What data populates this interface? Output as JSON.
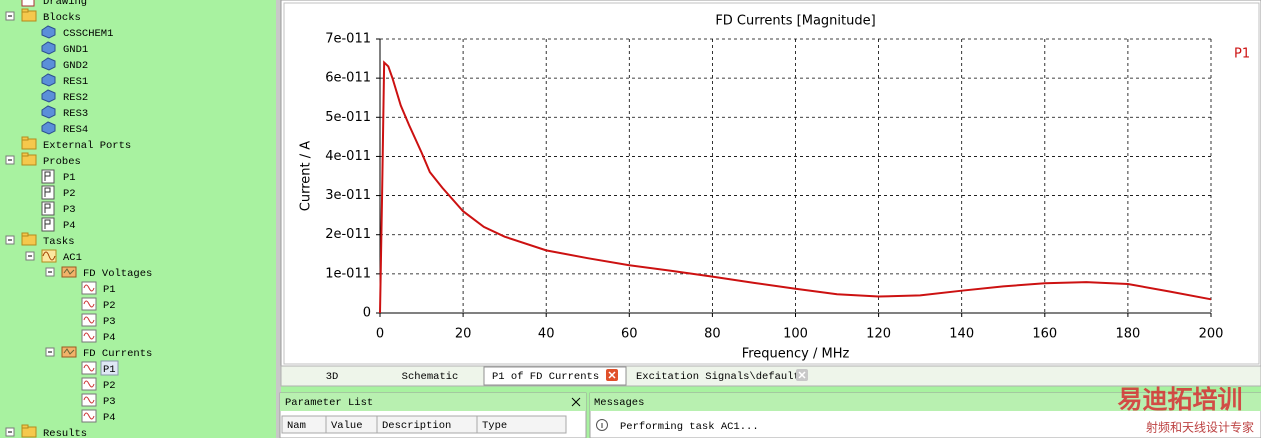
{
  "tree": {
    "items": [
      {
        "label": "Drawing",
        "level": 0,
        "icon": "drawing"
      },
      {
        "label": "Blocks",
        "level": 0,
        "icon": "folder",
        "expanded": true
      },
      {
        "label": "CSSCHEM1",
        "level": 1,
        "icon": "block"
      },
      {
        "label": "GND1",
        "level": 1,
        "icon": "block"
      },
      {
        "label": "GND2",
        "level": 1,
        "icon": "block"
      },
      {
        "label": "RES1",
        "level": 1,
        "icon": "block"
      },
      {
        "label": "RES2",
        "level": 1,
        "icon": "block"
      },
      {
        "label": "RES3",
        "level": 1,
        "icon": "block"
      },
      {
        "label": "RES4",
        "level": 1,
        "icon": "block"
      },
      {
        "label": "External Ports",
        "level": 0,
        "icon": "folder"
      },
      {
        "label": "Probes",
        "level": 0,
        "icon": "folder",
        "expanded": true
      },
      {
        "label": "P1",
        "level": 1,
        "icon": "probe"
      },
      {
        "label": "P2",
        "level": 1,
        "icon": "probe"
      },
      {
        "label": "P3",
        "level": 1,
        "icon": "probe"
      },
      {
        "label": "P4",
        "level": 1,
        "icon": "probe"
      },
      {
        "label": "Tasks",
        "level": 0,
        "icon": "folder",
        "expanded": true
      },
      {
        "label": "AC1",
        "level": 1,
        "icon": "task",
        "expanded": true
      },
      {
        "label": "FD Voltages",
        "level": 2,
        "icon": "group",
        "expanded": true
      },
      {
        "label": "P1",
        "level": 3,
        "icon": "signal"
      },
      {
        "label": "P2",
        "level": 3,
        "icon": "signal"
      },
      {
        "label": "P3",
        "level": 3,
        "icon": "signal"
      },
      {
        "label": "P4",
        "level": 3,
        "icon": "signal"
      },
      {
        "label": "FD Currents",
        "level": 2,
        "icon": "group",
        "expanded": true
      },
      {
        "label": "P1",
        "level": 3,
        "icon": "signal",
        "selected": true
      },
      {
        "label": "P2",
        "level": 3,
        "icon": "signal"
      },
      {
        "label": "P3",
        "level": 3,
        "icon": "signal"
      },
      {
        "label": "P4",
        "level": 3,
        "icon": "signal"
      },
      {
        "label": "Results",
        "level": 0,
        "icon": "folder",
        "expanded": true
      }
    ]
  },
  "chart_data": {
    "type": "line",
    "title": "FD Currents [Magnitude]",
    "x_label": "Frequency / MHz",
    "y_label": "Current / A",
    "x": [
      0,
      0.5,
      1,
      2,
      3,
      5,
      7,
      10,
      12,
      15,
      20,
      25,
      30,
      40,
      50,
      60,
      70,
      80,
      90,
      100,
      110,
      120,
      130,
      140,
      150,
      160,
      170,
      180,
      190,
      200
    ],
    "series": [
      {
        "name": "P1",
        "color": "#cc1111",
        "values": [
          0,
          3e-11,
          6.4e-11,
          6.3e-11,
          6e-11,
          5.3e-11,
          4.8e-11,
          4.1e-11,
          3.6e-11,
          3.2e-11,
          2.6e-11,
          2.2e-11,
          1.95e-11,
          1.6e-11,
          1.4e-11,
          1.22e-11,
          1.08e-11,
          9.3e-12,
          7.7e-12,
          6.2e-12,
          4.8e-12,
          4.2e-12,
          4.5e-12,
          5.7e-12,
          6.8e-12,
          7.6e-12,
          7.9e-12,
          7.4e-12,
          5.5e-12,
          3.5e-12
        ]
      }
    ],
    "xlim": [
      0,
      200
    ],
    "ylim": [
      0,
      7e-11
    ],
    "xticks": [
      0,
      20,
      40,
      60,
      80,
      100,
      120,
      140,
      160,
      180,
      200
    ],
    "yticks": [
      0,
      {
        "value": 1e-11,
        "label": "1e-011"
      },
      {
        "value": 2e-11,
        "label": "2e-011"
      },
      {
        "value": 3e-11,
        "label": "3e-011"
      },
      {
        "value": 4e-11,
        "label": "4e-011"
      },
      {
        "value": 5e-11,
        "label": "5e-011"
      },
      {
        "value": 6e-11,
        "label": "6e-011"
      },
      {
        "value": 7e-11,
        "label": "7e-011"
      }
    ],
    "grid": true,
    "legend": "top-right"
  },
  "tabs": [
    {
      "label": "3D"
    },
    {
      "label": "Schematic"
    },
    {
      "label": "P1 of FD Currents",
      "active": true,
      "closable": true
    },
    {
      "label": "Excitation Signals\\default",
      "closable": true
    }
  ],
  "parameter_list": {
    "title": "Parameter List",
    "columns": [
      "Nam",
      "Value",
      "Description",
      "Type"
    ]
  },
  "messages": {
    "title": "Messages",
    "rows": [
      "Performing task AC1..."
    ]
  },
  "watermark": {
    "title": "易迪拓培训",
    "subtitle": "射频和天线设计专家"
  }
}
